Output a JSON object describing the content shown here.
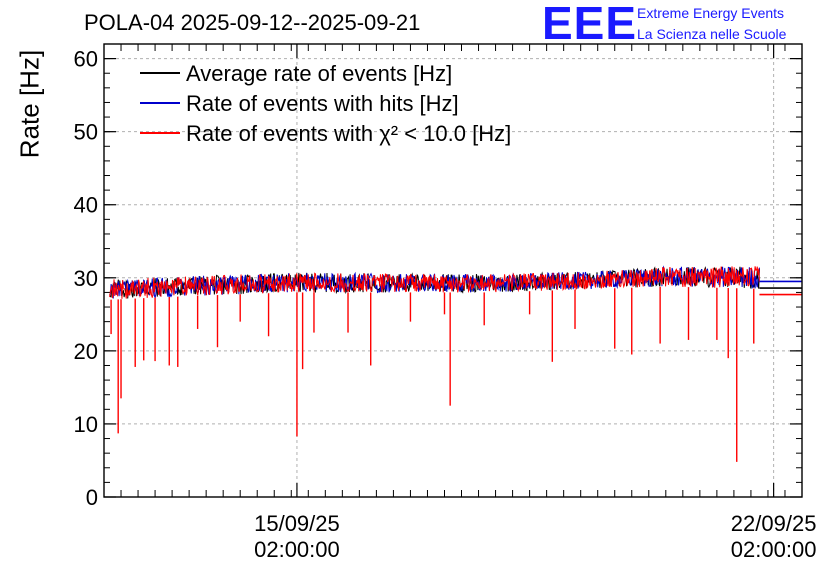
{
  "chart_data": {
    "type": "line",
    "title": "POLA-04 2025-09-12--2025-09-21",
    "ylabel": "Rate [Hz]",
    "xlabel": "",
    "ylim": [
      0,
      62
    ],
    "yticks": [
      0,
      10,
      20,
      30,
      40,
      50,
      60
    ],
    "x_start": "2025-09-12T06:00:00",
    "x_end": "2025-09-22T12:00:00",
    "xticks": [
      {
        "x": "2025-09-15T02:00:00",
        "date_label": "15/09/25",
        "time_label": "02:00:00"
      },
      {
        "x": "2025-09-22T02:00:00",
        "date_label": "22/09/25",
        "time_label": "02:00:00"
      }
    ],
    "grid": true,
    "legend_position": "top-left",
    "series": [
      {
        "name": "Average rate of events [Hz]",
        "color": "#000000",
        "constant_value": 28.6
      },
      {
        "name": "Rate of events with hits [Hz]",
        "color": "#0000cc",
        "constant_value": 29.5
      },
      {
        "name": "Rate of events with χ² < 10.0 [Hz]",
        "color": "#ff0000",
        "constant_value": 27.7
      }
    ],
    "data_range": {
      "start": "2025-09-12T08:00:00",
      "end": "2025-09-21T21:00:00"
    },
    "baseline_band": [
      {
        "x": "2025-09-12T08:00:00",
        "low": 27.0,
        "high": 29.8
      },
      {
        "x": "2025-09-13T12:00:00",
        "low": 27.5,
        "high": 30.2
      },
      {
        "x": "2025-09-15T00:00:00",
        "low": 28.0,
        "high": 30.7
      },
      {
        "x": "2025-09-16T12:00:00",
        "low": 28.0,
        "high": 30.6
      },
      {
        "x": "2025-09-18T00:00:00",
        "low": 28.0,
        "high": 30.5
      },
      {
        "x": "2025-09-19T12:00:00",
        "low": 28.5,
        "high": 30.9
      },
      {
        "x": "2025-09-20T12:00:00",
        "low": 28.8,
        "high": 31.5
      },
      {
        "x": "2025-09-21T21:00:00",
        "low": 28.5,
        "high": 31.6
      }
    ],
    "dips": [
      {
        "x": "2025-09-12T11:00:00",
        "y": 8.7
      },
      {
        "x": "2025-09-12T12:00:00",
        "y": 13.5
      },
      {
        "x": "2025-09-12T08:30:00",
        "y": 22.3
      },
      {
        "x": "2025-09-12T17:00:00",
        "y": 17.8
      },
      {
        "x": "2025-09-12T20:00:00",
        "y": 18.7
      },
      {
        "x": "2025-09-13T00:00:00",
        "y": 18.6
      },
      {
        "x": "2025-09-13T05:00:00",
        "y": 18.0
      },
      {
        "x": "2025-09-13T08:00:00",
        "y": 17.8
      },
      {
        "x": "2025-09-13T15:00:00",
        "y": 23.0
      },
      {
        "x": "2025-09-13T22:00:00",
        "y": 20.5
      },
      {
        "x": "2025-09-14T06:00:00",
        "y": 24.0
      },
      {
        "x": "2025-09-14T16:00:00",
        "y": 22.0
      },
      {
        "x": "2025-09-15T02:00:00",
        "y": 8.3
      },
      {
        "x": "2025-09-15T04:00:00",
        "y": 17.5
      },
      {
        "x": "2025-09-15T08:00:00",
        "y": 22.5
      },
      {
        "x": "2025-09-15T20:00:00",
        "y": 22.5
      },
      {
        "x": "2025-09-16T04:00:00",
        "y": 18.0
      },
      {
        "x": "2025-09-16T18:00:00",
        "y": 24.0
      },
      {
        "x": "2025-09-17T06:00:00",
        "y": 25.0
      },
      {
        "x": "2025-09-17T08:00:00",
        "y": 12.5
      },
      {
        "x": "2025-09-17T20:00:00",
        "y": 23.5
      },
      {
        "x": "2025-09-18T12:00:00",
        "y": 25.0
      },
      {
        "x": "2025-09-18T20:00:00",
        "y": 18.5
      },
      {
        "x": "2025-09-19T04:00:00",
        "y": 23.0
      },
      {
        "x": "2025-09-19T18:00:00",
        "y": 20.3
      },
      {
        "x": "2025-09-20T00:00:00",
        "y": 19.5
      },
      {
        "x": "2025-09-20T10:00:00",
        "y": 21.0
      },
      {
        "x": "2025-09-20T20:00:00",
        "y": 21.5
      },
      {
        "x": "2025-09-21T06:00:00",
        "y": 21.5
      },
      {
        "x": "2025-09-21T10:00:00",
        "y": 19.0
      },
      {
        "x": "2025-09-21T13:00:00",
        "y": 4.8
      },
      {
        "x": "2025-09-21T19:00:00",
        "y": 21.0
      }
    ]
  },
  "logo": {
    "mark": "EEE",
    "line1": "Extreme Energy Events",
    "line2": "La Scienza nelle Scuole"
  }
}
